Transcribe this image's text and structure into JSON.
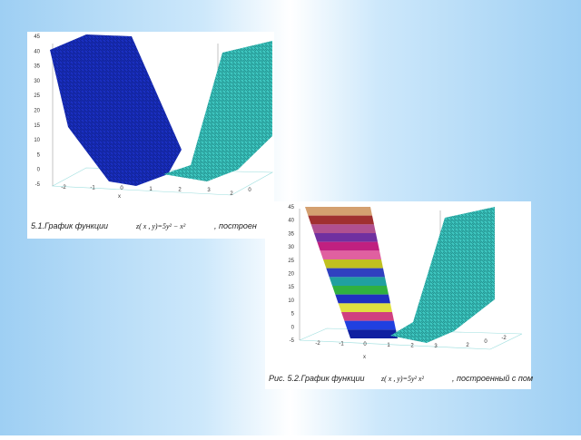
{
  "figures": [
    {
      "caption": "5.1.График функции",
      "formula": "z( x , y)=5y² − x²",
      "caption_end": ", построен",
      "zticks": [
        45,
        40,
        35,
        30,
        25,
        20,
        15,
        10,
        5,
        0,
        -5
      ],
      "xticks": [
        -2,
        -1,
        0,
        1,
        2,
        3
      ],
      "yticks": [
        2,
        0
      ],
      "xlabel": "x"
    },
    {
      "caption": "Рис. 5.2.График функции",
      "formula": "z( x , y)=5y²   x²",
      "caption_end": ", построенный с пом",
      "zticks": [
        45,
        40,
        35,
        30,
        25,
        20,
        15,
        10,
        5,
        0,
        -5
      ],
      "xticks": [
        -2,
        -1,
        0,
        1,
        2,
        3
      ],
      "yticks": [
        2,
        0,
        -2
      ],
      "xlabel": "x"
    }
  ]
}
